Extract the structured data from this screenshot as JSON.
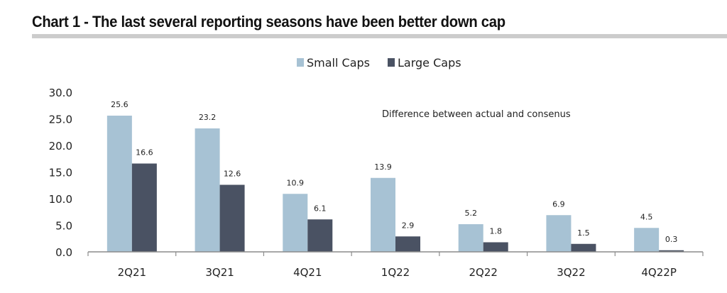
{
  "chart_data": {
    "type": "bar",
    "title": "Chart 1 - The last several reporting seasons have been better down cap",
    "annotation": "Difference between actual and consenus",
    "xlabel": "",
    "ylabel": "",
    "ylim": [
      0,
      30
    ],
    "yticks": [
      "0.0",
      "5.0",
      "10.0",
      "15.0",
      "20.0",
      "25.0",
      "30.0"
    ],
    "grid": false,
    "legend_position": "top-center",
    "categories": [
      "2Q21",
      "3Q21",
      "4Q21",
      "1Q22",
      "2Q22",
      "3Q22",
      "4Q22P"
    ],
    "series": [
      {
        "name": "Small Caps",
        "color": "#a7c2d4",
        "values": [
          25.6,
          23.2,
          10.9,
          13.9,
          5.2,
          6.9,
          4.5
        ]
      },
      {
        "name": "Large Caps",
        "color": "#4a5263",
        "values": [
          16.6,
          12.6,
          6.1,
          2.9,
          1.8,
          1.5,
          0.3
        ]
      }
    ]
  }
}
